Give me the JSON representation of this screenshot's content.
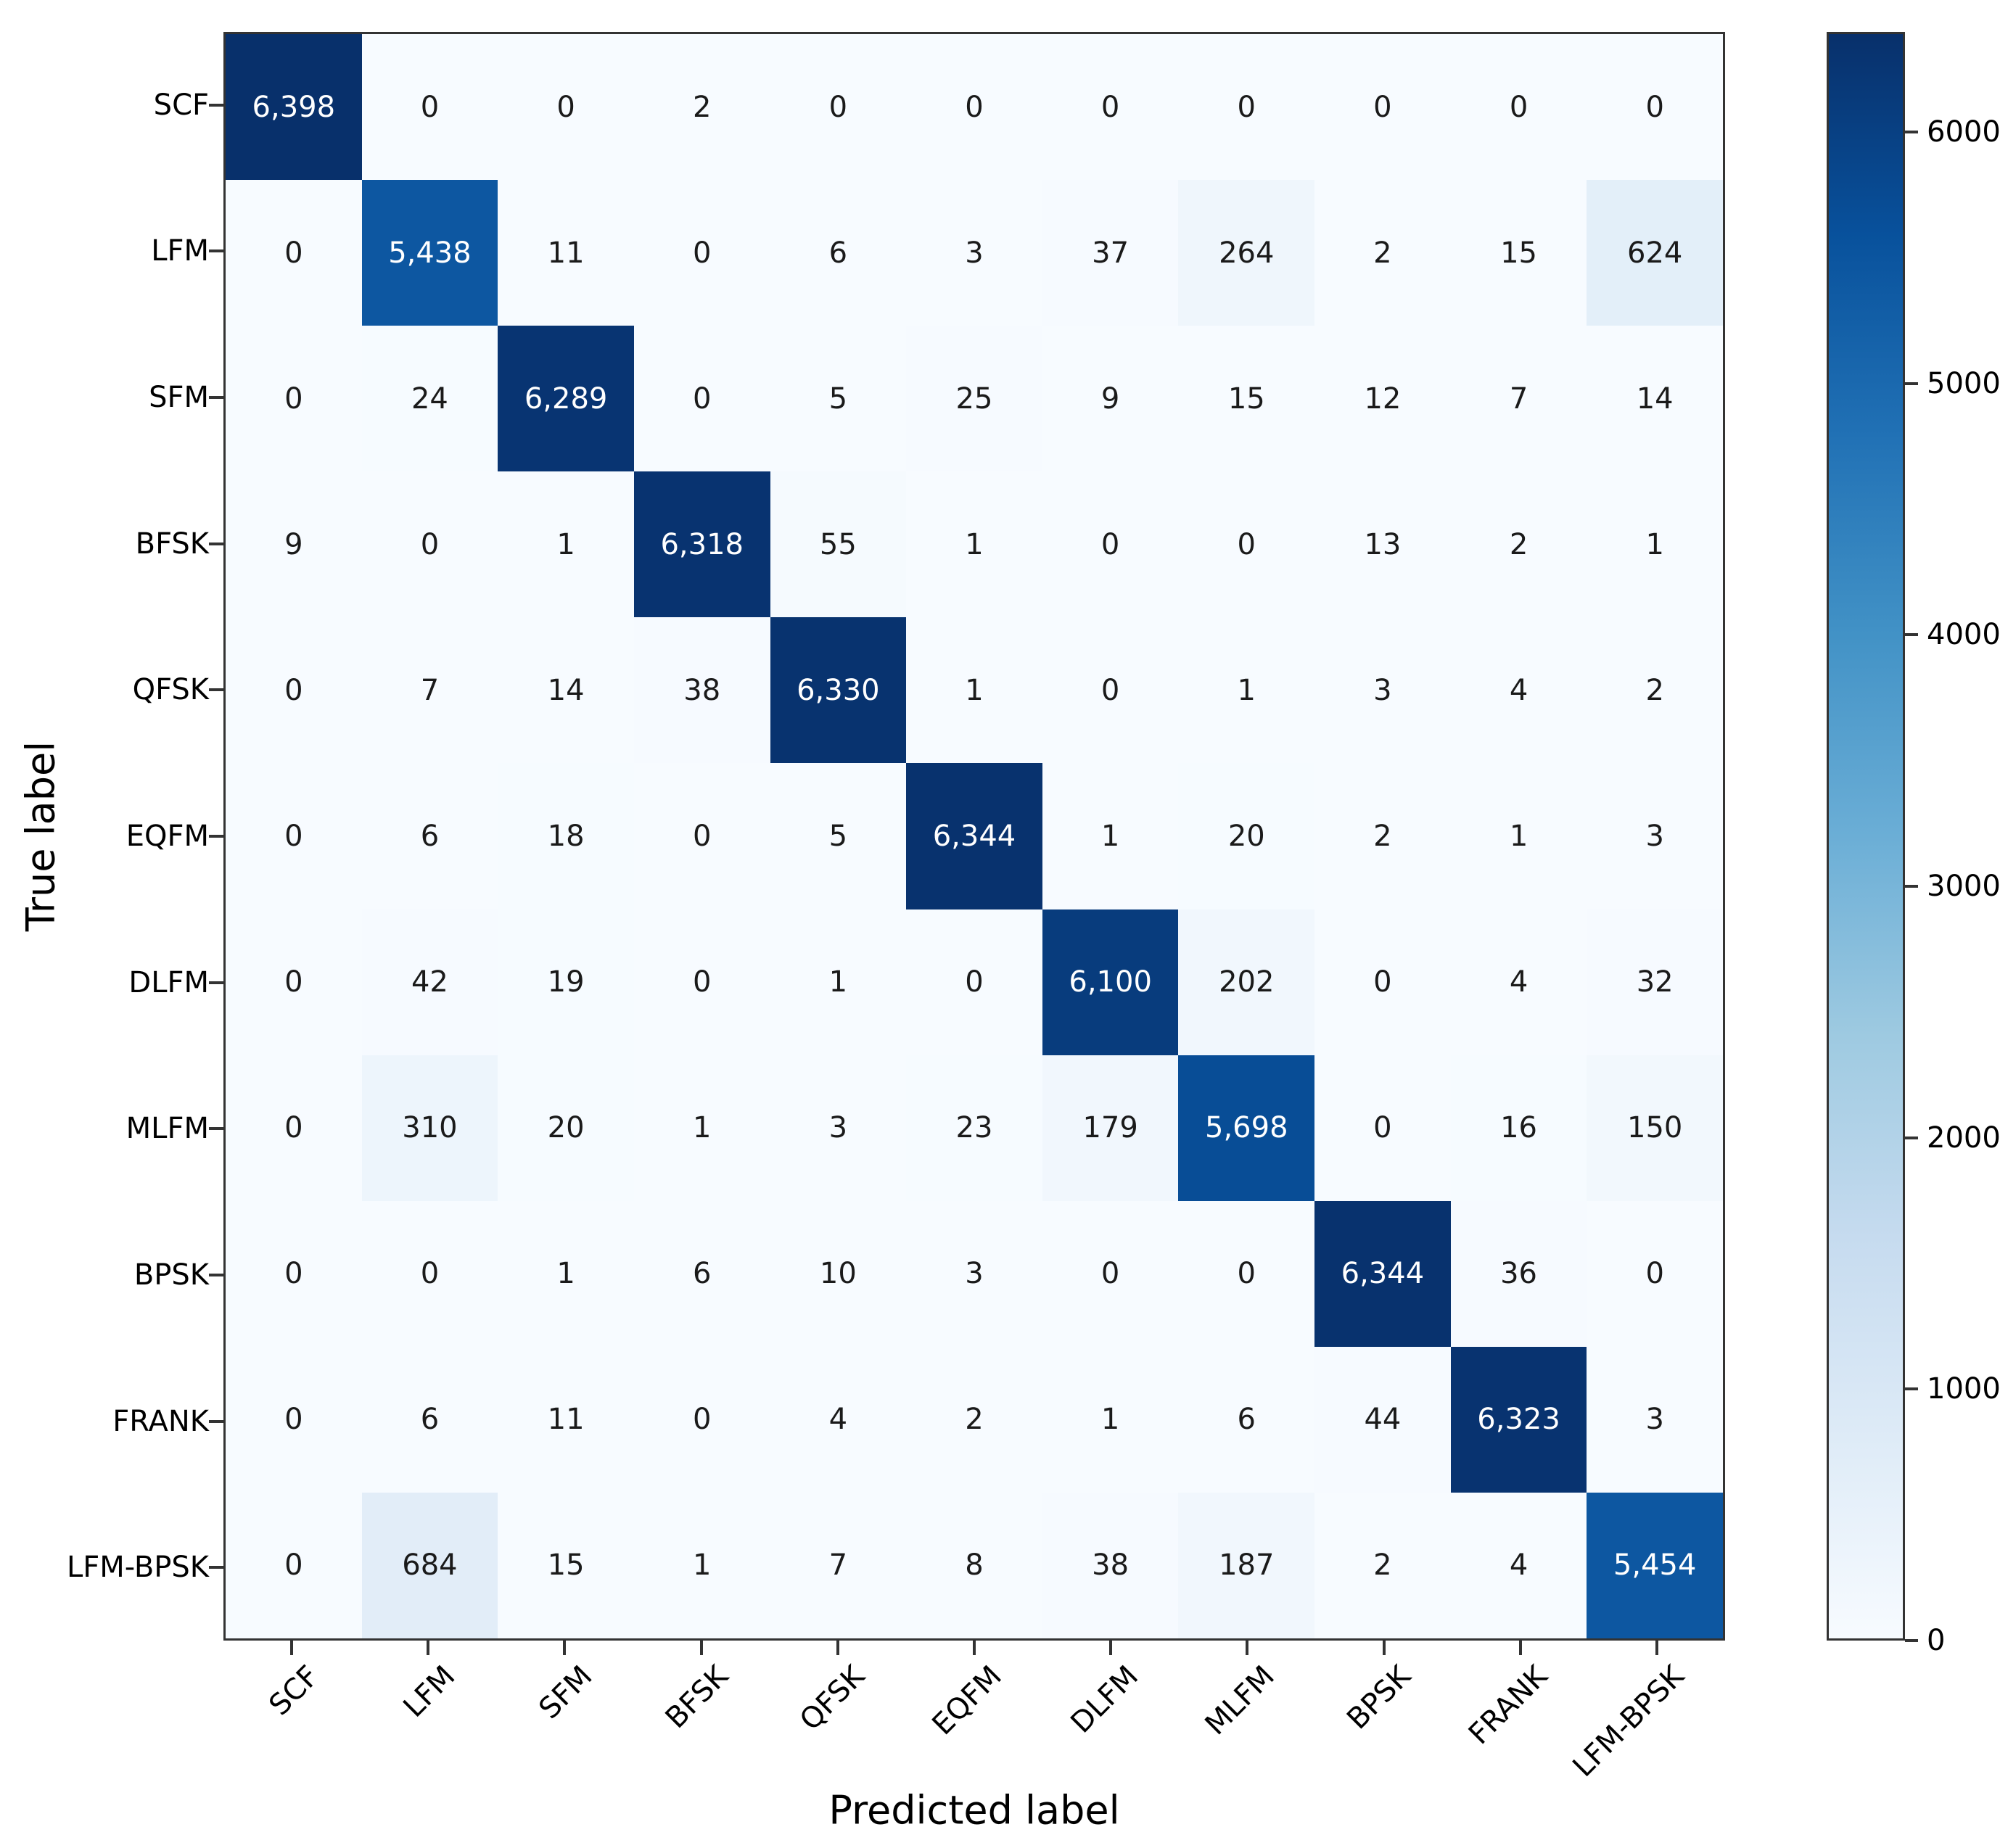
{
  "chart_data": {
    "type": "heatmap",
    "subtype": "confusion-matrix",
    "title": "",
    "xlabel": "Predicted label",
    "ylabel": "True label",
    "categories": [
      "SCF",
      "LFM",
      "SFM",
      "BFSK",
      "QFSK",
      "EQFM",
      "DLFM",
      "MLFM",
      "BPSK",
      "FRANK",
      "LFM-BPSK"
    ],
    "matrix": [
      [
        6398,
        0,
        0,
        2,
        0,
        0,
        0,
        0,
        0,
        0,
        0
      ],
      [
        0,
        5438,
        11,
        0,
        6,
        3,
        37,
        264,
        2,
        15,
        624
      ],
      [
        0,
        24,
        6289,
        0,
        5,
        25,
        9,
        15,
        12,
        7,
        14
      ],
      [
        9,
        0,
        1,
        6318,
        55,
        1,
        0,
        0,
        13,
        2,
        1
      ],
      [
        0,
        7,
        14,
        38,
        6330,
        1,
        0,
        1,
        3,
        4,
        2
      ],
      [
        0,
        6,
        18,
        0,
        5,
        6344,
        1,
        20,
        2,
        1,
        3
      ],
      [
        0,
        42,
        19,
        0,
        1,
        0,
        6100,
        202,
        0,
        4,
        32
      ],
      [
        0,
        310,
        20,
        1,
        3,
        23,
        179,
        5698,
        0,
        16,
        150
      ],
      [
        0,
        0,
        1,
        6,
        10,
        3,
        0,
        0,
        6344,
        36,
        0
      ],
      [
        0,
        6,
        11,
        0,
        4,
        2,
        1,
        6,
        44,
        6323,
        3
      ],
      [
        0,
        684,
        15,
        1,
        7,
        8,
        38,
        187,
        2,
        4,
        5454
      ]
    ],
    "vmin": 0,
    "vmax": 6398,
    "colorbar_ticks": [
      0,
      1000,
      2000,
      3000,
      4000,
      5000,
      6000
    ],
    "colormap": {
      "name": "Blues",
      "stops": [
        "#f7fbff",
        "#deebf7",
        "#c6dbef",
        "#9ecae1",
        "#6baed6",
        "#4292c6",
        "#2171b5",
        "#08519c",
        "#08306b"
      ]
    },
    "x_tick_rotation": 45,
    "number_format": "thousands-comma",
    "legend_position": "colorbar-right",
    "grid": false,
    "colors": {
      "spine": "#333333",
      "cell_text_dark": "#1a1a1a",
      "cell_text_light": "#ffffff",
      "background": "#ffffff"
    }
  }
}
